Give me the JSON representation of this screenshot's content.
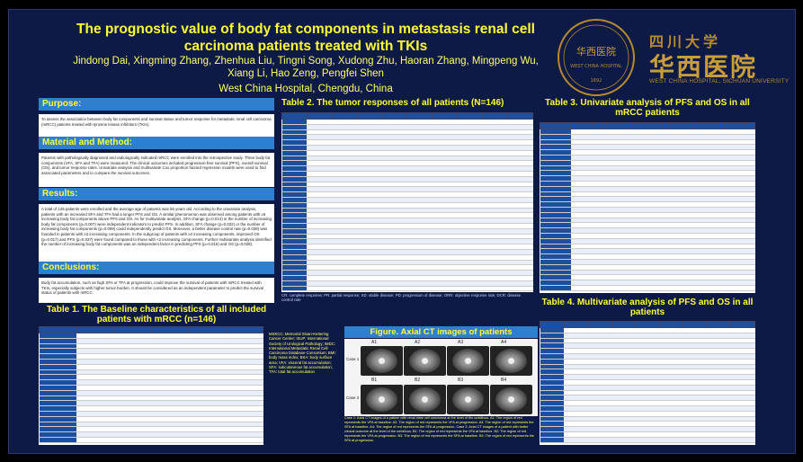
{
  "header": {
    "title_line1": "The prognostic value of body fat components in metastasis renal cell",
    "title_line2": "carcinoma patients treated with TKIs",
    "authors_line1": "Jindong Dai, Xingming Zhang, Zhenhua Liu, Tingni Song, Xudong Zhu, Haoran Zhang, Mingpeng Wu,",
    "authors_line2": "Xiang Li, Hao Zeng, Pengfei Shen",
    "affiliation": "West China Hospital, Chengdu, China"
  },
  "logo": {
    "seal_text": "华西医院",
    "seal_caption": "WEST CHINA HOSPITAL",
    "seal_year": "1892",
    "univ_cn": "四川大学",
    "hospital_cn": "华西医院",
    "hospital_en": "WEST CHINA HOSPITAL, SICHUAN UNIVERSITY"
  },
  "sections": {
    "purpose": {
      "heading": "Purpose:",
      "text": "To assess the association between body fat components and survival status and tumor response for metastatic renal cell carcinoma (mRCC) patients treated with tyrosine kinase inhibitors (TKIs)."
    },
    "methods": {
      "heading": "Material and Method:",
      "text": "Patients with pathologically diagnosed and radiologically indicated mRCC were enrolled into the retrospective study. Three body fat components (VFA, SFA and TFA) were measured. The clinical outcomes included progression-free survival (PFS), overall survival (OS), and tumor response rates. Univariate analysis and multivariate Cox proportion hazard regression models were used to find associated parameters and to compare the survival outcomes."
    },
    "results": {
      "heading": "Results:",
      "text": "A total of 146 patients were enrolled and the average age of patients was 56 years old. According to the univariate analysis, patients with an increased SFA and TFA had a longer PFS and OS. A similar phenomenon was observed among patients with ≥5 increasing body fat components above PFS and OS. As for multivariate analysis, SFA change (p=0.014) in the number of increasing body fat components (p=0.007) were independent indicators to predict PFS. In addition, SFA change (p=0.032) or the number of increasing body fat components (p=0.008) could independently predict OS. Moreover, a better disease control rate (p=0.038) was founded in patients with ≥2 increasing components. In the subgroup of patients with ≥2 increasing components, improved OS (p=0.017) and PFS (p=0.037) were found compared to those with <2 increasing components. Further multivariate analysis identified the number of increasing body fat components was an independent factor in predicting PFS (p=0.016) and OS (p=0.028)."
    },
    "conclusions": {
      "heading": "Conclusions:",
      "text": "Body fat accumulation, such as high SFA or TFA at progression, could improve the survival of patients with mRCC treated with TKIs, especially subjects with higher tumor burden. It should be considered as an independent parameter to predict the survival status of patients with mRCC."
    }
  },
  "tables": {
    "table1_title": "Table 1. The Baseline characteristics of all included patients with mRCC (n=146)",
    "table2_title": "Table 2. The tumor responses of all patients (N=146)",
    "table2_note": "CR: complete response; PR: partial response; SD: stable disease; PD: progression of disease; ORR: objective response rate; DCR: disease control rate",
    "table3_title": "Table 3. Univariate analysis of PFS and OS in all mRCC patients",
    "table4_title": "Table 4. Multivariate analysis of PFS and OS in all patients"
  },
  "abbreviations": "MSKCC: Memorial Sloan-Kettering Cancer Center; ISUP: International Society of Urological Pathology; IMDC: International Metastatic Renal Cell Carcinoma Database Consortium; BMI: body mass index; BSA: body surface area; VFA: visceral fat accumulation; SFA: subcutaneous fat accumulation; TFA: total fat accumulation",
  "figure": {
    "title": "Figure. Axial CT images of patients",
    "case1": "Case 1",
    "case2": "Case 2",
    "panels_row1": [
      "A1",
      "A2",
      "A3",
      "A4"
    ],
    "panels_row2": [
      "B1",
      "B2",
      "B3",
      "B4"
    ],
    "caption": "Case 1: Axial CT images of a patient with renal clear cell carcinoma at the level of the umbilicus. A1: The region of red represents the VFA at baseline. A2: The region of red represents the VFA at progression. A3: The region of red represents the SFA at baseline. A4: The region of red represents the SFA at progression. Case 2: Axial CT images of a patient with better clinical outcome at the level of the umbilicus. B1: The region of red represents the VFA at baseline. B2: The region of red represents the VFA at progression. B3: The region of red represents the SFA at baseline. B4: The region of red represents the SFA at progression."
  },
  "colors": {
    "background": "#0c1a45",
    "heading_bar": "#2d7fd0",
    "heading_text": "#ffff33",
    "table_header": "#1e4f9e"
  }
}
